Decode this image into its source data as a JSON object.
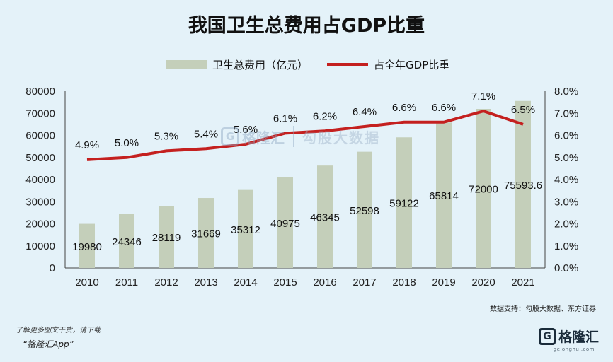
{
  "title": "我国卫生总费用占GDP比重",
  "colors": {
    "background": "#e4f2f9",
    "bar": "#c4cfba",
    "line": "#c4201f"
  },
  "chart_data": {
    "type": "bar",
    "title": "我国卫生总费用占GDP比重",
    "categories": [
      "2010",
      "2011",
      "2012",
      "2013",
      "2014",
      "2015",
      "2016",
      "2017",
      "2018",
      "2019",
      "2020",
      "2021"
    ],
    "series": [
      {
        "name": "卫生总费用（亿元）",
        "type": "bar",
        "axis": "left",
        "values": [
          19980,
          24346,
          28119,
          31669,
          35312,
          40975,
          46345,
          52598,
          59122,
          65814,
          72000,
          75593.6
        ],
        "labels": [
          "19980",
          "24346",
          "28119",
          "31669",
          "35312",
          "40975",
          "46345",
          "52598",
          "59122",
          "65814",
          "72000",
          "75593.6"
        ]
      },
      {
        "name": "占全年GDP比重",
        "type": "line",
        "axis": "right",
        "values": [
          4.9,
          5.0,
          5.3,
          5.4,
          5.6,
          6.1,
          6.2,
          6.4,
          6.6,
          6.6,
          7.1,
          6.5
        ],
        "labels": [
          "4.9%",
          "5.0%",
          "5.3%",
          "5.4%",
          "5.6%",
          "6.1%",
          "6.2%",
          "6.4%",
          "6.6%",
          "6.6%",
          "7.1%",
          "6.5%"
        ]
      }
    ],
    "y_left": {
      "min": 0,
      "max": 80000,
      "ticks": [
        "0",
        "10000",
        "20000",
        "30000",
        "40000",
        "50000",
        "60000",
        "70000",
        "80000"
      ]
    },
    "y_right": {
      "min": 0,
      "max": 8,
      "ticks": [
        "0.0%",
        "1.0%",
        "2.0%",
        "3.0%",
        "4.0%",
        "5.0%",
        "6.0%",
        "7.0%",
        "8.0%"
      ]
    },
    "legend_position": "top-center",
    "grid": false
  },
  "source": "数据支持：勾股大数据、东方证券",
  "footer": {
    "note": "了解更多图文干货，请下载",
    "app": "“格隆汇App”",
    "logo_text": "格隆汇",
    "logo_mark": "G",
    "logo_sub": "gelonghui.com"
  },
  "watermark": {
    "mark": "G",
    "brand": "格隆汇",
    "brand2": "勾股大数据"
  }
}
